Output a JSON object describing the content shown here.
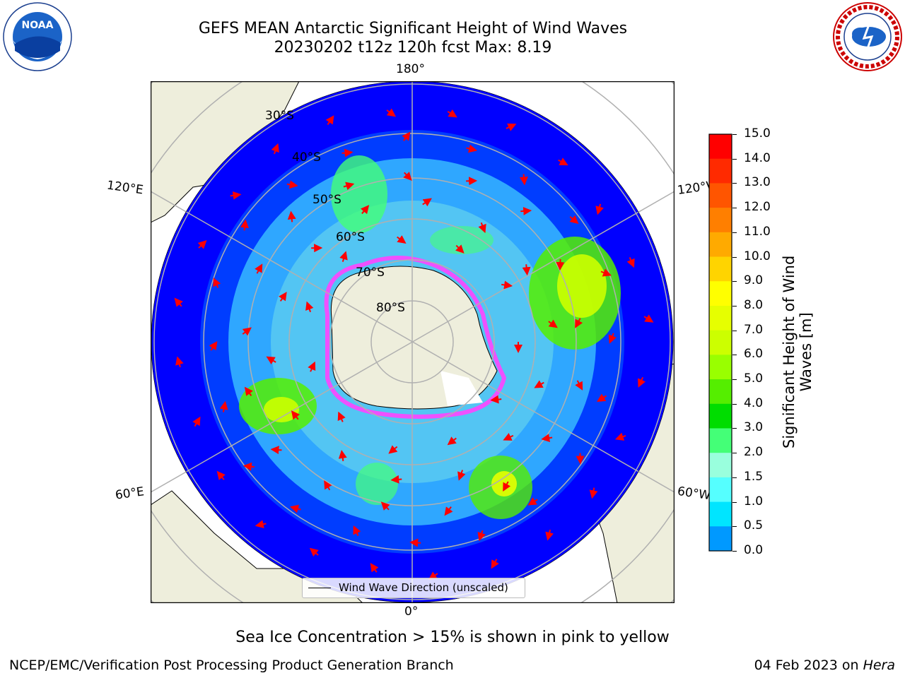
{
  "title_line1": "GEFS MEAN Antarctic Significant Height of Wind Waves",
  "title_line2": "20230202 t12z 120h fcst   Max: 8.19",
  "axis_labels": {
    "top": "180°",
    "bottom": "0°",
    "left_upper": "120°E",
    "left_lower": "60°E",
    "right_upper": "120°W",
    "right_lower": "60°W"
  },
  "lat_labels": [
    "30°S",
    "40°S",
    "50°S",
    "60°S",
    "70°S",
    "80°S"
  ],
  "legend_label": "Wind Wave Direction (unscaled)",
  "colorbar": {
    "label_line1": "Significant Height of Wind",
    "label_line2": "Waves [m]",
    "ticks": [
      "15.0",
      "14.0",
      "13.0",
      "12.0",
      "11.0",
      "10.0",
      "9.0",
      "8.0",
      "7.0",
      "6.0",
      "5.0",
      "4.0",
      "3.0",
      "2.0",
      "1.5",
      "1.0",
      "0.5",
      "0.0"
    ],
    "colors": [
      "#ff0000",
      "#ff2a00",
      "#ff5500",
      "#ff7f00",
      "#ffaa00",
      "#ffd400",
      "#ffff00",
      "#e6ff00",
      "#ccff00",
      "#99ff00",
      "#55ee00",
      "#00dd00",
      "#44ff77",
      "#99ffdd",
      "#55ffff",
      "#00e5ff",
      "#0099ff",
      "#0044ff",
      "#0000ff"
    ]
  },
  "note": "Sea Ice Concentration > 15% is shown in pink to yellow",
  "footer_left": "NCEP/EMC/Verification Post Processing Product Generation Branch",
  "footer_right_date": "04 Feb 2023 on ",
  "footer_right_host": "Hera",
  "logos": {
    "left_text": "NOAA",
    "left_ring": "NATIONAL OCEANIC AND ATMOSPHERIC ADMINISTRATION · U.S. DEPARTMENT OF COMMERCE",
    "right_ring": "NATIONAL WEATHER SERVICE"
  },
  "colors": {
    "land": "#eeeedc",
    "ocean_low": "#0000ff",
    "arrow": "#ff0000",
    "grid": "#b0b0b0"
  }
}
